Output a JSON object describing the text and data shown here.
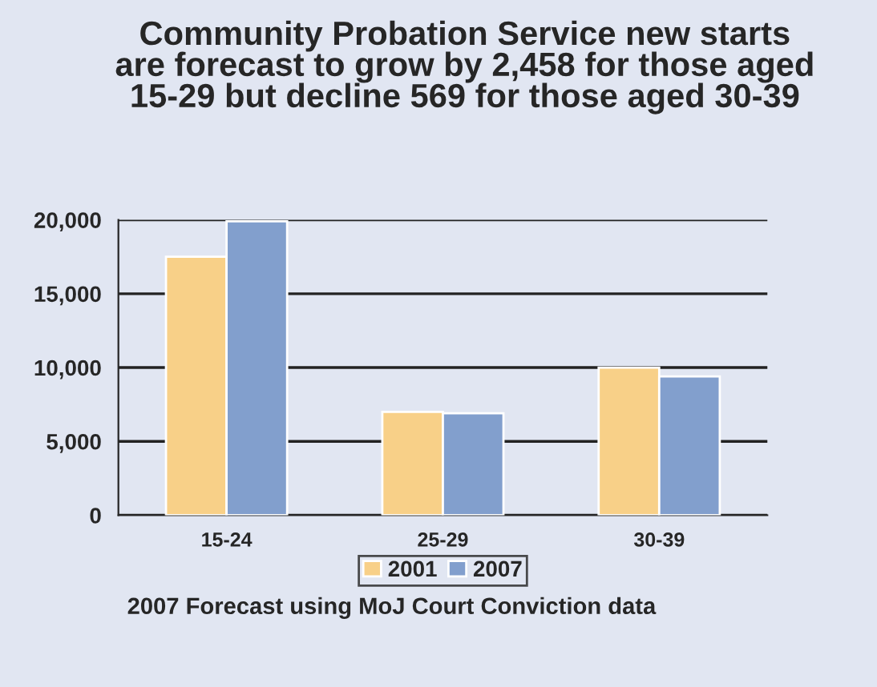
{
  "chart_data": {
    "type": "bar",
    "title": "Community Probation Service new starts\nare forecast to grow by 2,458 for those aged\n15-29 but decline 569 for those aged 30-39",
    "categories": [
      "15-24",
      "25-29",
      "30-39"
    ],
    "series": [
      {
        "name": "2001",
        "color": "#f8d088",
        "values": [
          17500,
          7000,
          10000
        ]
      },
      {
        "name": "2007",
        "color": "#829fcd",
        "values": [
          19900,
          6900,
          9400
        ]
      }
    ],
    "ylim": [
      0,
      20000
    ],
    "yticks": [
      {
        "value": 0,
        "label": "0"
      },
      {
        "value": 5000,
        "label": "5,000"
      },
      {
        "value": 10000,
        "label": "10,000"
      },
      {
        "value": 15000,
        "label": "15,000"
      },
      {
        "value": 20000,
        "label": "20,000"
      }
    ],
    "grid": "y",
    "legend": "bottom",
    "annotations": [
      "2007 Forecast using MoJ Court Conviction data"
    ]
  }
}
